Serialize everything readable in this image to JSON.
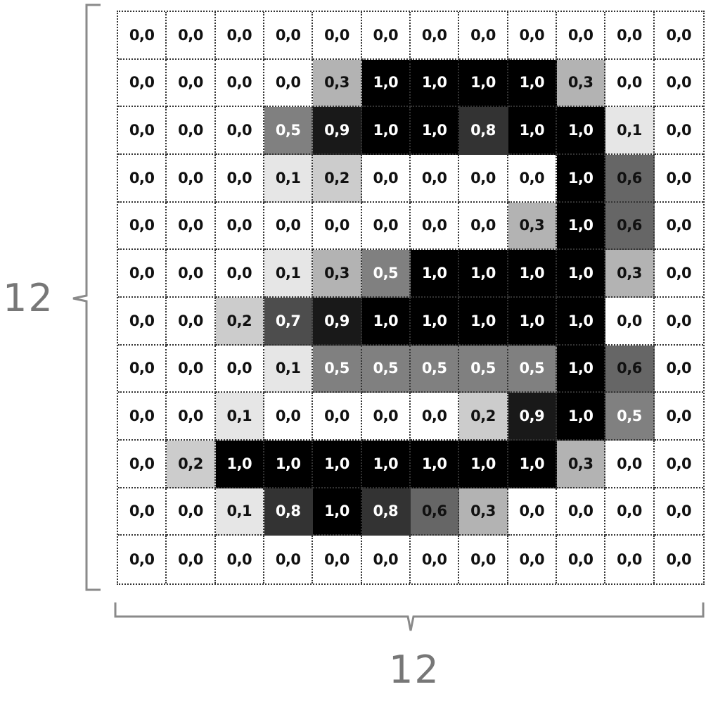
{
  "dimensions": {
    "rows_label": "12",
    "cols_label": "12"
  },
  "matrix": [
    [
      "0,0",
      "0,0",
      "0,0",
      "0,0",
      "0,0",
      "0,0",
      "0,0",
      "0,0",
      "0,0",
      "0,0",
      "0,0",
      "0,0"
    ],
    [
      "0,0",
      "0,0",
      "0,0",
      "0,0",
      "0,3",
      "1,0",
      "1,0",
      "1,0",
      "1,0",
      "0,3",
      "0,0",
      "0,0"
    ],
    [
      "0,0",
      "0,0",
      "0,0",
      "0,5",
      "0,9",
      "1,0",
      "1,0",
      "0,8",
      "1,0",
      "1,0",
      "0,1",
      "0,0"
    ],
    [
      "0,0",
      "0,0",
      "0,0",
      "0,1",
      "0,2",
      "0,0",
      "0,0",
      "0,0",
      "0,0",
      "1,0",
      "0,6",
      "0,0"
    ],
    [
      "0,0",
      "0,0",
      "0,0",
      "0,0",
      "0,0",
      "0,0",
      "0,0",
      "0,0",
      "0,3",
      "1,0",
      "0,6",
      "0,0"
    ],
    [
      "0,0",
      "0,0",
      "0,0",
      "0,1",
      "0,3",
      "0,5",
      "1,0",
      "1,0",
      "1,0",
      "1,0",
      "0,3",
      "0,0"
    ],
    [
      "0,0",
      "0,0",
      "0,2",
      "0,7",
      "0,9",
      "1,0",
      "1,0",
      "1,0",
      "1,0",
      "1,0",
      "0,0",
      "0,0"
    ],
    [
      "0,0",
      "0,0",
      "0,0",
      "0,1",
      "0,5",
      "0,5",
      "0,5",
      "0,5",
      "0,5",
      "1,0",
      "0,6",
      "0,0"
    ],
    [
      "0,0",
      "0,0",
      "0,1",
      "0,0",
      "0,0",
      "0,0",
      "0,0",
      "0,2",
      "0,9",
      "1,0",
      "0,5",
      "0,0"
    ],
    [
      "0,0",
      "0,2",
      "1,0",
      "1,0",
      "1,0",
      "1,0",
      "1,0",
      "1,0",
      "1,0",
      "0,3",
      "0,0",
      "0,0"
    ],
    [
      "0,0",
      "0,0",
      "0,1",
      "0,8",
      "1,0",
      "0,8",
      "0,6",
      "0,3",
      "0,0",
      "0,0",
      "0,0",
      "0,0"
    ],
    [
      "0,0",
      "0,0",
      "0,0",
      "0,0",
      "0,0",
      "0,0",
      "0,0",
      "0,0",
      "0,0",
      "0,0",
      "0,0",
      "0,0"
    ]
  ],
  "colors": {
    "bracket": "#8a8a8a",
    "label": "#777777",
    "grid_border": "#333333"
  }
}
